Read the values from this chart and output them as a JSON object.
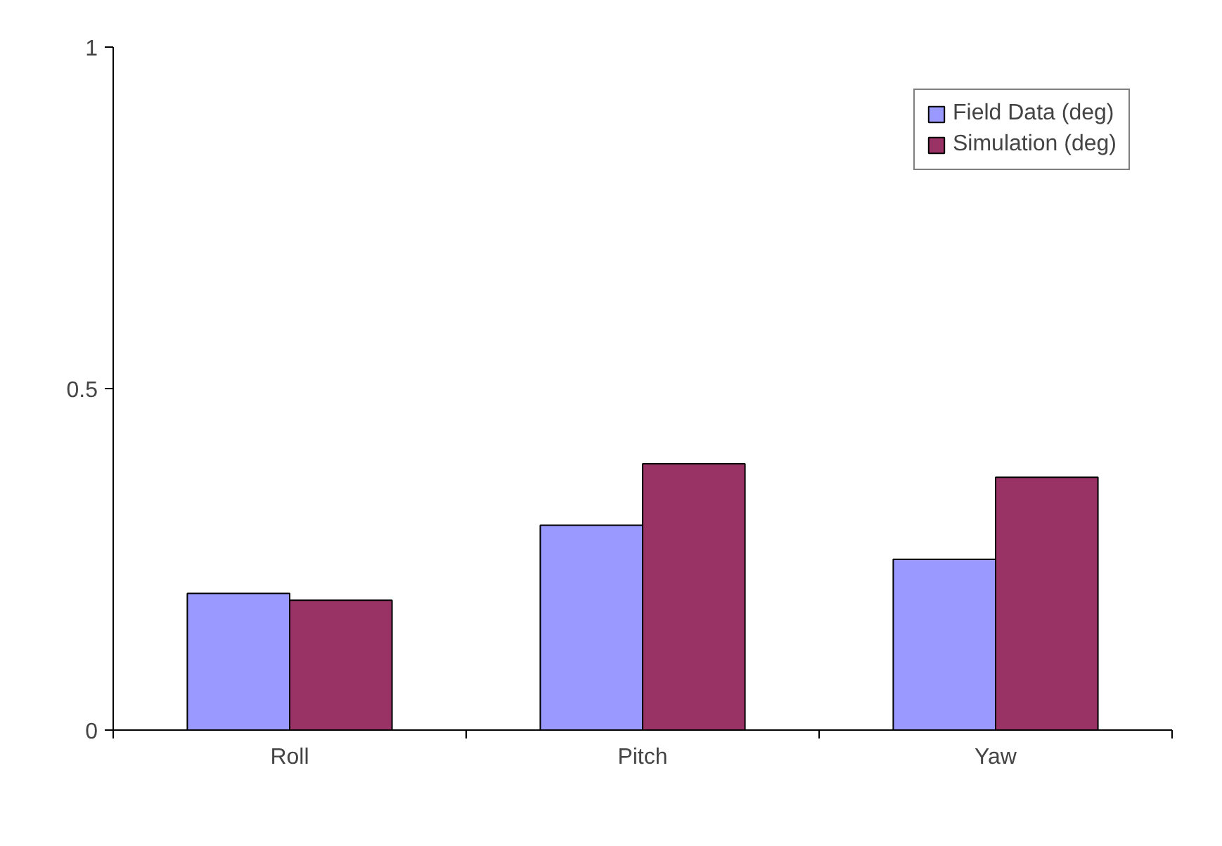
{
  "chart_data": {
    "type": "bar",
    "categories": [
      "Roll",
      "Pitch",
      "Yaw"
    ],
    "series": [
      {
        "name": "Field Data (deg)",
        "color": "#9999ff",
        "values": [
          0.2,
          0.3,
          0.25
        ]
      },
      {
        "name": "Simulation (deg)",
        "color": "#993366",
        "values": [
          0.19,
          0.39,
          0.37
        ]
      }
    ],
    "ylim": [
      0,
      1
    ],
    "yticks": [
      0,
      0.5,
      1
    ],
    "grid": false,
    "legend": "top right"
  }
}
